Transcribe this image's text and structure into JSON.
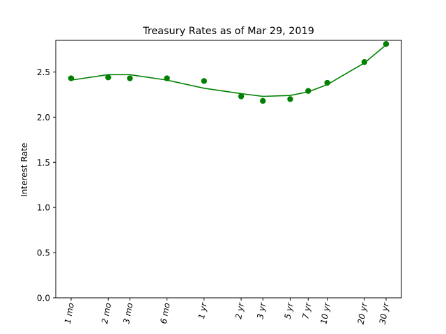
{
  "chart_data": {
    "type": "scatter",
    "title": "Treasury Rates as of Mar 29, 2019",
    "xlabel": "",
    "ylabel": "Interest Rate",
    "ylim": [
      0,
      2.85
    ],
    "yticks": [
      "0.0",
      "0.5",
      "1.0",
      "1.5",
      "2.0",
      "2.5"
    ],
    "x_scale": "log",
    "grid": false,
    "legend": "none",
    "categories": [
      "1 mo",
      "2 mo",
      "3 mo",
      "6 mo",
      "1 yr",
      "2 yr",
      "3 yr",
      "5 yr",
      "7 yr",
      "10 yr",
      "20 yr",
      "30 yr"
    ],
    "x_years": [
      0.0833,
      0.1667,
      0.25,
      0.5,
      1,
      2,
      3,
      5,
      7,
      10,
      20,
      30
    ],
    "series": [
      {
        "kind": "points",
        "values": [
          2.43,
          2.44,
          2.43,
          2.43,
          2.4,
          2.23,
          2.18,
          2.2,
          2.29,
          2.38,
          2.61,
          2.81
        ]
      },
      {
        "kind": "line",
        "values": [
          2.41,
          2.47,
          2.47,
          2.41,
          2.32,
          2.26,
          2.23,
          2.24,
          2.28,
          2.36,
          2.6,
          2.8
        ]
      }
    ],
    "colors": {
      "series": "#008000",
      "axes": "#000000",
      "background": "#ffffff"
    }
  }
}
